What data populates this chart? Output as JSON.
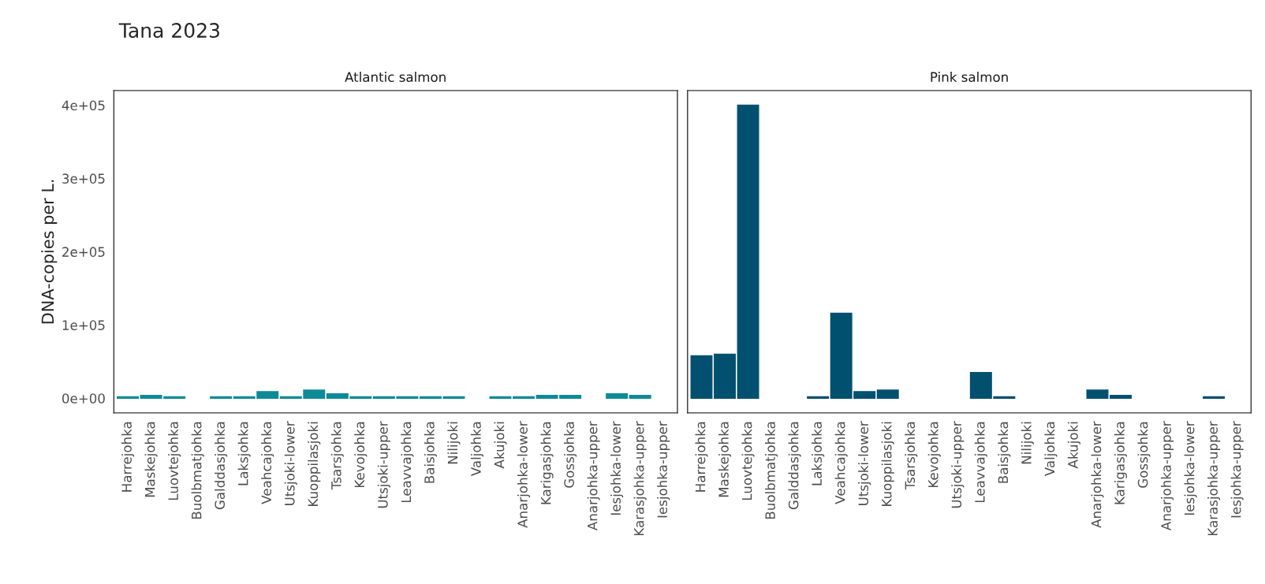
{
  "chart_data": [
    {
      "type": "bar",
      "title": "Tana 2023",
      "subtitle": "Atlantic salmon",
      "ylabel": "DNA-copies per L.",
      "categories": [
        "Harrejohka",
        "Maskejohka",
        "Luovtejohka",
        "Buolbmatjohka",
        "Galddasjohka",
        "Laksjohka",
        "Veahcajohka",
        "Utsjoki-lower",
        "Kuoppilasjoki",
        "Tsarsjohka",
        "Kevojohka",
        "Utsjoki-upper",
        "Leavvajohka",
        "Baisjohka",
        "Nilijoki",
        "Valjohka",
        "Akujoki",
        "Anarjohka-lower",
        "Karigasjohka",
        "Gossjohka",
        "Anarjohka-upper",
        "Iesjohka-lower",
        "Karasjohka-upper",
        "Iesjohka-upper"
      ],
      "series": [
        {
          "color": "#0e8a96",
          "values": [
            2000,
            4000,
            2000,
            null,
            2000,
            2000,
            9000,
            2000,
            11000,
            6000,
            2000,
            2000,
            2000,
            2000,
            2000,
            null,
            2000,
            2000,
            4000,
            4000,
            null,
            6000,
            4000,
            null
          ]
        }
      ],
      "ylim": [
        -20000,
        420000
      ],
      "yticks": [
        {
          "value": 0,
          "label": "0e+00"
        },
        {
          "value": 100000,
          "label": "1e+05"
        },
        {
          "value": 200000,
          "label": "2e+05"
        },
        {
          "value": 300000,
          "label": "3e+05"
        },
        {
          "value": 400000,
          "label": "4e+05"
        }
      ],
      "grid": false
    },
    {
      "type": "bar",
      "subtitle": "Pink salmon",
      "categories": [
        "Harrejohka",
        "Maskejohka",
        "Luovtejohka",
        "Buolbmatjohka",
        "Galddasjohka",
        "Laksjohka",
        "Veahcajohka",
        "Utsjoki-lower",
        "Kuoppilasjoki",
        "Tsarsjohka",
        "Kevojohka",
        "Utsjoki-upper",
        "Leavvajohka",
        "Baisjohka",
        "Nilijoki",
        "Valjohka",
        "Akujoki",
        "Anarjohka-lower",
        "Karigasjohka",
        "Gossjohka",
        "Anarjohka-upper",
        "Iesjohka-lower",
        "Karasjohka-upper",
        "Iesjohka-upper"
      ],
      "series": [
        {
          "color": "#01506f",
          "values": [
            58000,
            60000,
            400000,
            null,
            null,
            2000,
            116000,
            9000,
            11000,
            null,
            null,
            null,
            35000,
            2000,
            null,
            null,
            null,
            11000,
            4000,
            null,
            null,
            null,
            2000,
            null
          ]
        }
      ],
      "ylim": [
        -20000,
        420000
      ],
      "tick_labels": "x",
      "grid": false
    }
  ]
}
